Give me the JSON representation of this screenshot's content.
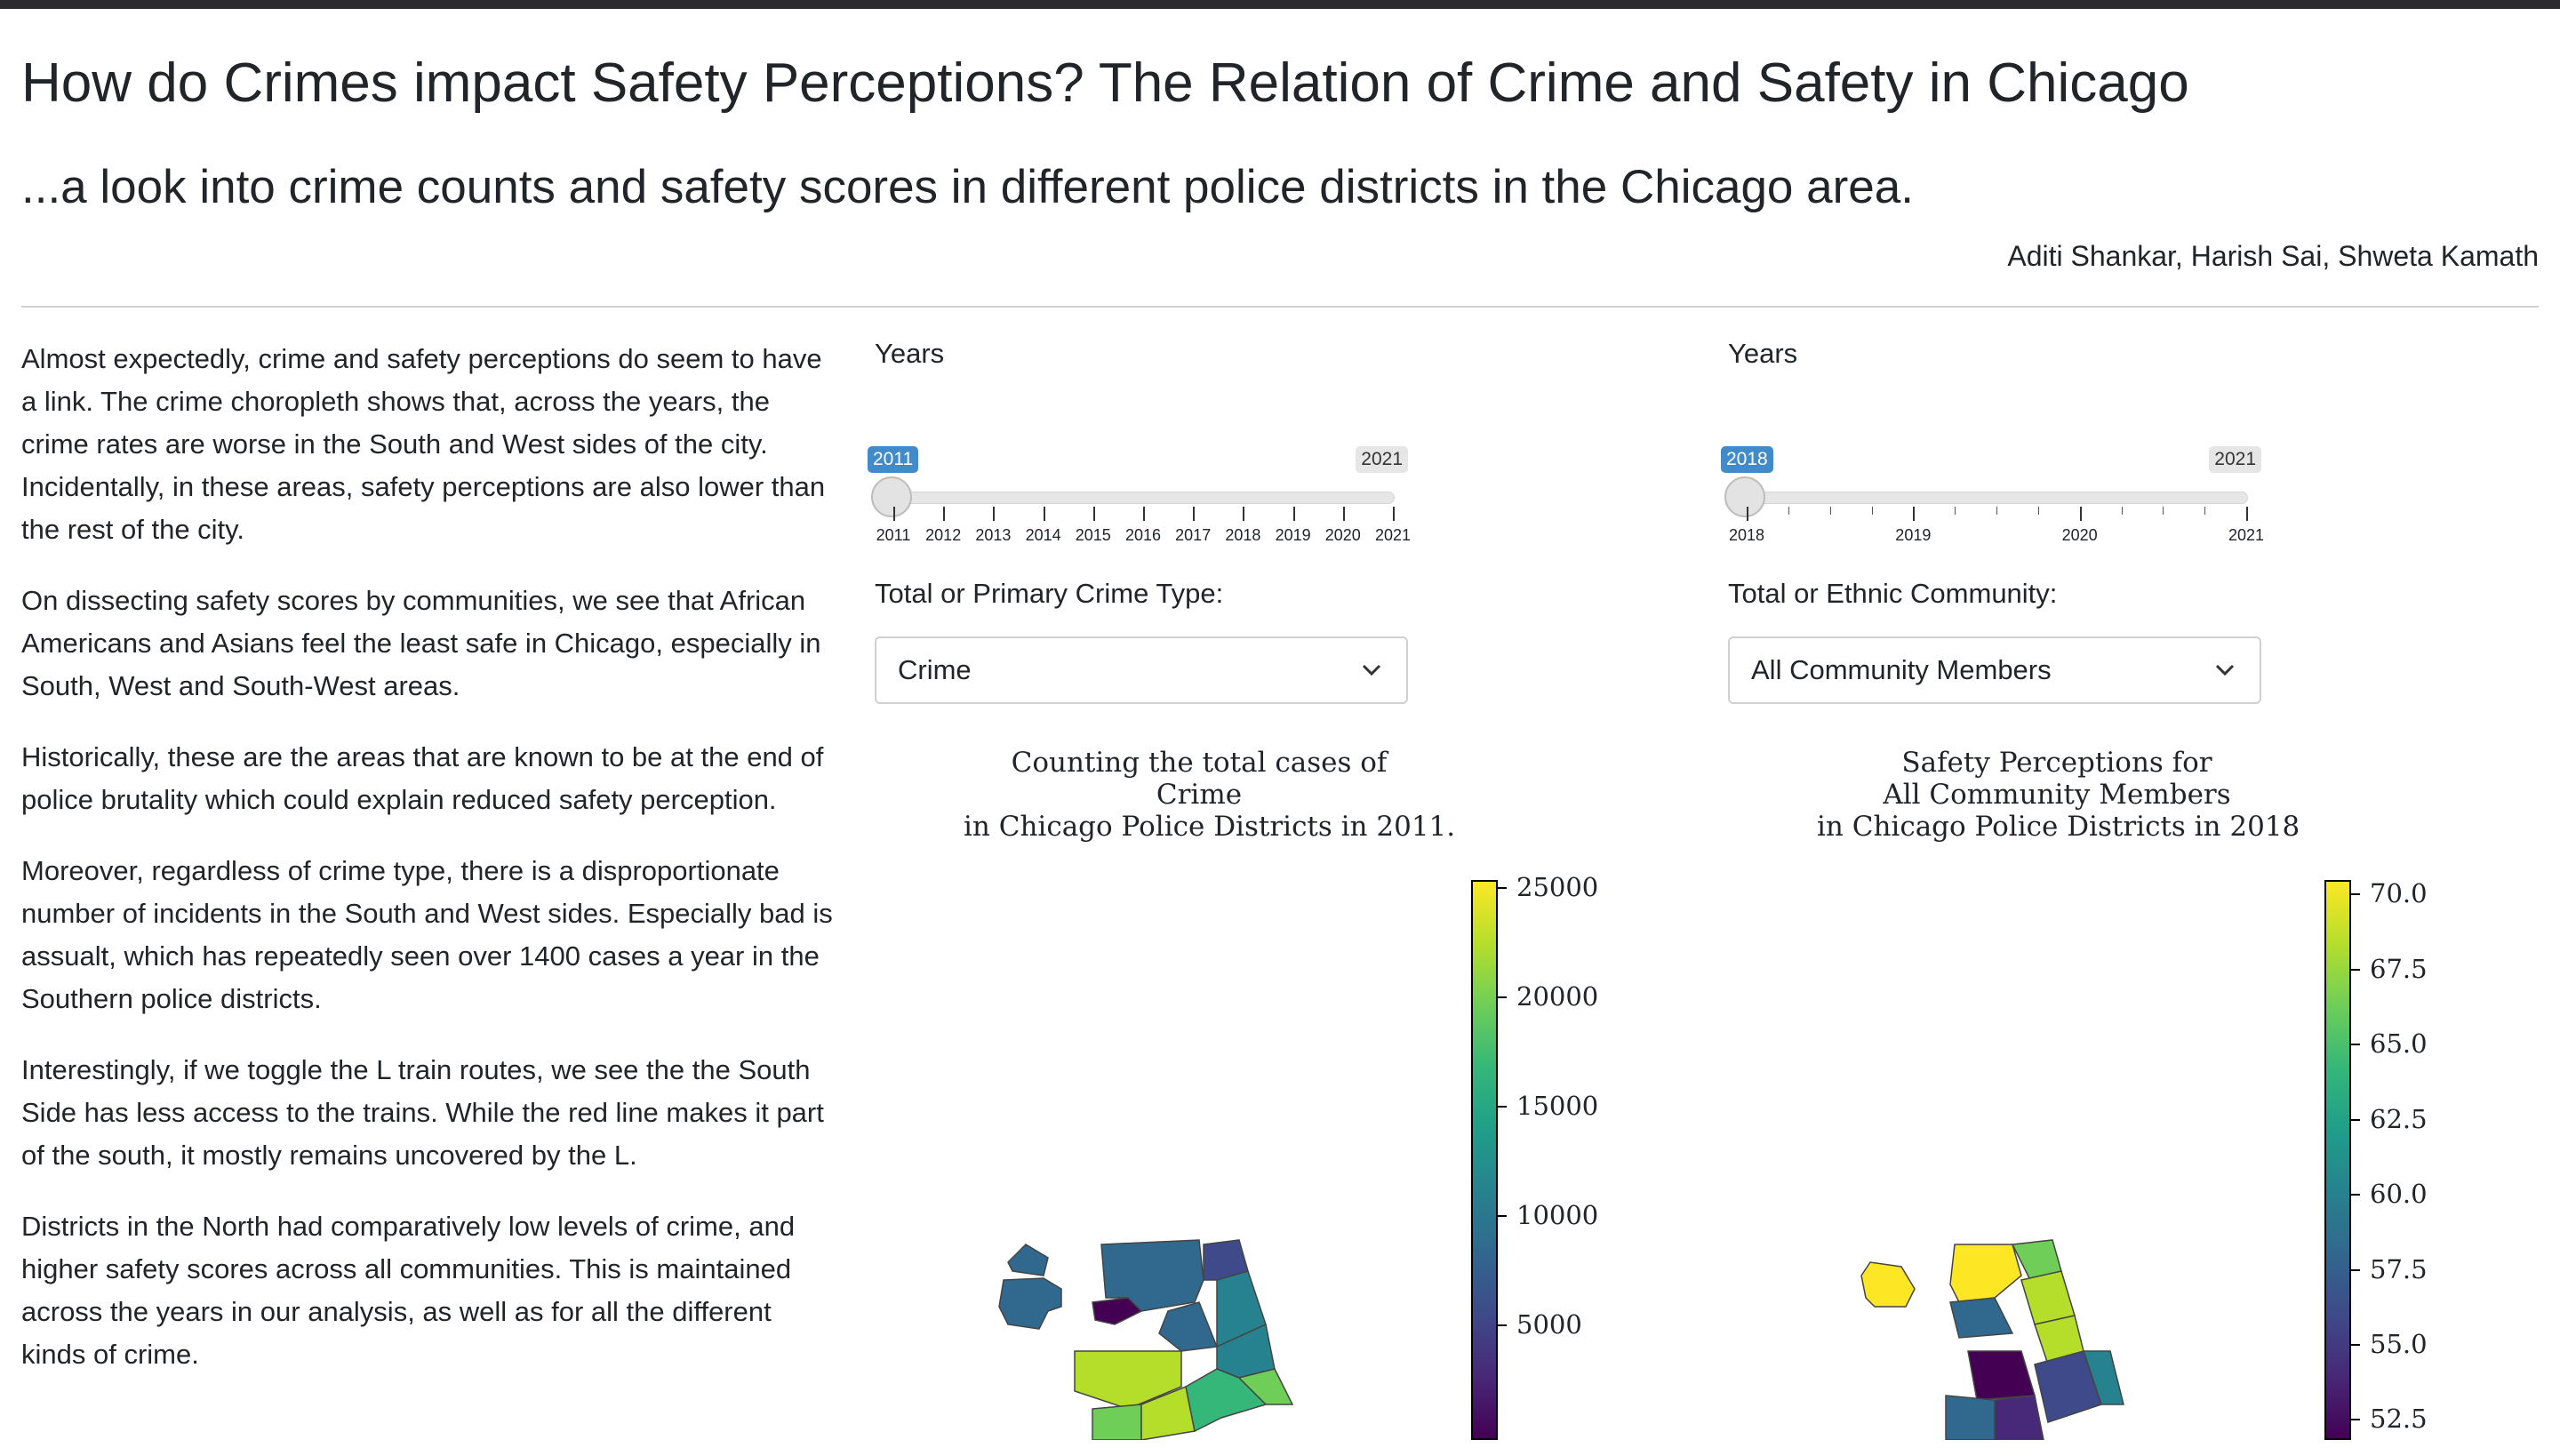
{
  "header": {
    "title": "How do Crimes impact Safety Perceptions? The Relation of Crime and Safety in Chicago",
    "subtitle": "...a look into crime counts and safety scores in different police districts in the Chicago area.",
    "authors": "Aditi Shankar, Harish Sai, Shweta Kamath"
  },
  "narrative": [
    "Almost expectedly, crime and safety perceptions do seem to have a link. The crime choropleth shows that, across the years, the crime rates are worse in the South and West sides of the city. Incidentally, in these areas, safety perceptions are also lower than the rest of the city.",
    "On dissecting safety scores by communities, we see that African Americans and Asians feel the least safe in Chicago, especially in South, West and South-West areas.",
    "Historically, these are the areas that are known to be at the end of police brutality which could explain reduced safety perception.",
    "Moreover, regardless of crime type, there is a disproportionate number of incidents in the South and West sides. Especially bad is assualt, which has repeatedly seen over 1400 cases a year in the Southern police districts.",
    "Interestingly, if we toggle the L train routes, we see the the South Side has less access to the trains. While the red line makes it part of the south, it mostly remains uncovered by the L.",
    "Districts in the North had comparatively low levels of crime, and higher safety scores across all communities. This is maintained across the years in our analysis, as well as for all the different kinds of crime."
  ],
  "crime_panel": {
    "slider_label": "Years",
    "selected_year": "2011",
    "max_year": "2021",
    "tick_labels": [
      "2011",
      "2012",
      "2013",
      "2014",
      "2015",
      "2016",
      "2017",
      "2018",
      "2019",
      "2020",
      "2021"
    ],
    "dropdown_label": "Total or Primary Crime Type:",
    "dropdown_value": "Crime",
    "map_title": [
      "Counting the total cases of",
      "Crime",
      "in Chicago Police Districts in 2011."
    ],
    "colorbar_labels": [
      "25000",
      "20000",
      "15000",
      "10000",
      "5000"
    ]
  },
  "safety_panel": {
    "slider_label": "Years",
    "selected_year": "2018",
    "max_year": "2021",
    "tick_labels": [
      "2018",
      "2019",
      "2020",
      "2021"
    ],
    "dropdown_label": "Total or Ethnic Community:",
    "dropdown_value": "All Community Members",
    "map_title": [
      "Safety Perceptions for",
      "All Community Members",
      "in Chicago Police Districts in 2018"
    ],
    "colorbar_labels": [
      "70.0",
      "67.5",
      "65.0",
      "62.5",
      "60.0",
      "57.5",
      "55.0",
      "52.5"
    ]
  },
  "colors": {
    "viridis": [
      "#440154",
      "#482878",
      "#3e4a89",
      "#31688e",
      "#26828e",
      "#1f9e89",
      "#35b779",
      "#6ece58",
      "#b5de2b",
      "#fde725"
    ],
    "slider_active": "#428bca",
    "top_bar": "#2b2b2f"
  },
  "icons": {
    "dropdown": "chevron-down-icon"
  }
}
